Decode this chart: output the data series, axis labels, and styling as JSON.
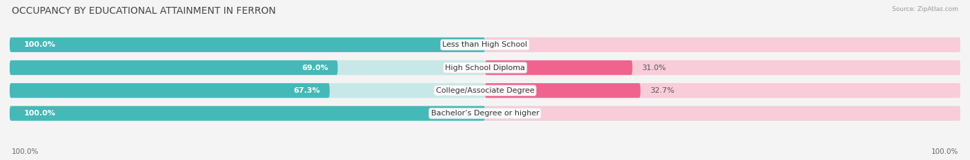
{
  "title": "OCCUPANCY BY EDUCATIONAL ATTAINMENT IN FERRON",
  "source": "Source: ZipAtlas.com",
  "categories": [
    "Less than High School",
    "High School Diploma",
    "College/Associate Degree",
    "Bachelor’s Degree or higher"
  ],
  "owner_values": [
    100.0,
    69.0,
    67.3,
    100.0
  ],
  "renter_values": [
    0.0,
    31.0,
    32.7,
    0.0
  ],
  "owner_color": "#45b8b8",
  "renter_color": "#f0638f",
  "owner_color_light": "#c8e8e8",
  "renter_color_light": "#f8ccd8",
  "row_bg_color": "#e4e4e4",
  "background_color": "#f4f4f4",
  "title_fontsize": 10,
  "label_fontsize": 8,
  "cat_fontsize": 8,
  "bar_height": 0.62,
  "n_rows": 4
}
